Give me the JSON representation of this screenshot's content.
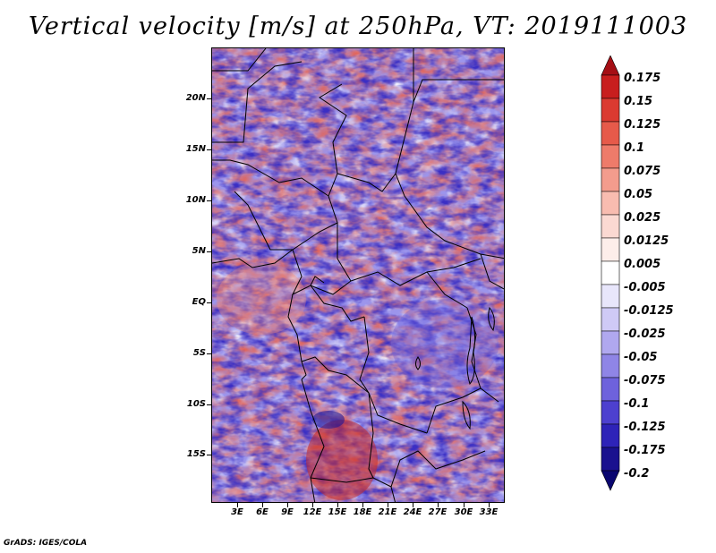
{
  "title": "Vertical velocity [m/s] at 250hPa, VT: 2019111003",
  "credit": "GrADS: IGES/COLA",
  "map": {
    "lat_labels": [
      "20N",
      "15N",
      "10N",
      "5N",
      "EQ",
      "5S",
      "10S",
      "15S"
    ],
    "lon_labels": [
      "3E",
      "6E",
      "9E",
      "12E",
      "15E",
      "18E",
      "21E",
      "24E",
      "27E",
      "30E",
      "33E"
    ]
  },
  "colorbar": {
    "levels": [
      "0.175",
      "0.15",
      "0.125",
      "0.1",
      "0.075",
      "0.05",
      "0.025",
      "0.0125",
      "0.005",
      "-0.005",
      "-0.0125",
      "-0.025",
      "-0.05",
      "-0.075",
      "-0.1",
      "-0.125",
      "-0.175",
      "-0.2"
    ],
    "colors": [
      "#a50f15",
      "#c81e1e",
      "#db3a31",
      "#e65a4a",
      "#ee7b6a",
      "#f39c8d",
      "#f8bcb0",
      "#fbd9d2",
      "#fdeeea",
      "#ffffff",
      "#e8e6fb",
      "#cfcaf6",
      "#b0a8ef",
      "#8f85e6",
      "#6e62dc",
      "#4d40cf",
      "#2e23b8",
      "#1a118f",
      "#0a0670"
    ]
  }
}
